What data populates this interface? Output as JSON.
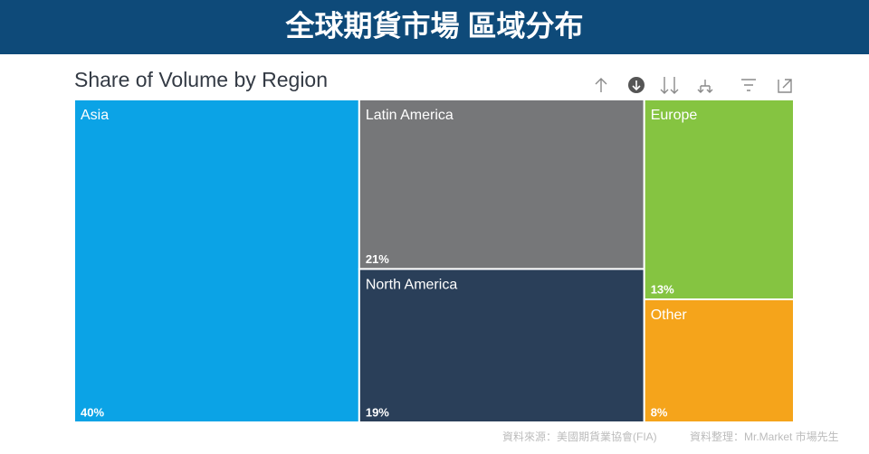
{
  "header": {
    "title": "全球期貨市場 區域分布"
  },
  "chart_data": {
    "type": "treemap",
    "title": "Share of Volume by Region",
    "categories": [
      "Asia",
      "Latin America",
      "North America",
      "Europe",
      "Other"
    ],
    "values": [
      40,
      21,
      19,
      13,
      8
    ],
    "value_labels": [
      "40%",
      "21%",
      "19%",
      "13%",
      "8%"
    ],
    "colors": [
      "#0ba3e6",
      "#767779",
      "#2a3f59",
      "#85c441",
      "#f5a41b"
    ]
  },
  "footer": {
    "source": "資料來源：美國期貨業協會(FIA)",
    "credit": "資料整理：Mr.Market 市場先生"
  }
}
